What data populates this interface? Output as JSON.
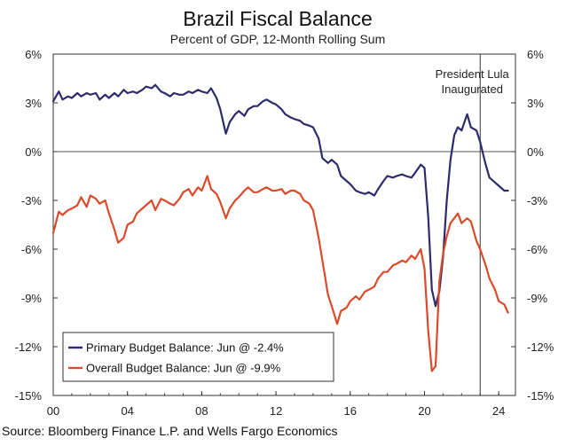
{
  "source": "Source: Bloomberg Finance L.P. and Wells Fargo Economics",
  "chart_data": {
    "type": "line",
    "title": "Brazil Fiscal Balance",
    "subtitle": "Percent of GDP, 12-Month Rolling Sum",
    "xlim": [
      2000,
      2024.9
    ],
    "ylim": [
      -15,
      6
    ],
    "x_ticks": [
      {
        "value": 2000,
        "label": "00"
      },
      {
        "value": 2004,
        "label": "04"
      },
      {
        "value": 2008,
        "label": "08"
      },
      {
        "value": 2012,
        "label": "12"
      },
      {
        "value": 2016,
        "label": "16"
      },
      {
        "value": 2020,
        "label": "20"
      },
      {
        "value": 2024,
        "label": "24"
      }
    ],
    "y_ticks": [
      {
        "value": 6,
        "label": "6%"
      },
      {
        "value": 3,
        "label": "3%"
      },
      {
        "value": 0,
        "label": "0%"
      },
      {
        "value": -3,
        "label": "-3%"
      },
      {
        "value": -6,
        "label": "-6%"
      },
      {
        "value": -9,
        "label": "-9%"
      },
      {
        "value": -12,
        "label": "-12%"
      },
      {
        "value": -15,
        "label": "-15%"
      }
    ],
    "zero_line": true,
    "legend_position": "bottom-left",
    "annotation": {
      "x": 2023.0,
      "text_lines": [
        "President Lula",
        "Inaugurated"
      ]
    },
    "series": [
      {
        "name": "Primary Budget Balance: Jun @ -2.4%",
        "color": "#2e2a6b",
        "x": [
          2000.0,
          2000.3,
          2000.5,
          2000.8,
          2001.0,
          2001.3,
          2001.5,
          2001.8,
          2002.0,
          2002.3,
          2002.5,
          2002.8,
          2003.0,
          2003.3,
          2003.5,
          2003.8,
          2004.0,
          2004.3,
          2004.5,
          2004.8,
          2005.0,
          2005.3,
          2005.5,
          2005.8,
          2006.0,
          2006.3,
          2006.5,
          2006.8,
          2007.0,
          2007.3,
          2007.5,
          2007.8,
          2008.0,
          2008.3,
          2008.5,
          2008.8,
          2009.0,
          2009.3,
          2009.5,
          2009.8,
          2010.0,
          2010.3,
          2010.5,
          2010.8,
          2011.0,
          2011.3,
          2011.5,
          2011.8,
          2012.0,
          2012.3,
          2012.5,
          2012.8,
          2013.0,
          2013.3,
          2013.5,
          2013.8,
          2014.0,
          2014.3,
          2014.5,
          2014.8,
          2015.0,
          2015.3,
          2015.5,
          2015.8,
          2016.0,
          2016.3,
          2016.5,
          2016.8,
          2017.0,
          2017.3,
          2017.5,
          2017.8,
          2018.0,
          2018.3,
          2018.5,
          2018.8,
          2019.0,
          2019.3,
          2019.5,
          2019.8,
          2020.0,
          2020.2,
          2020.4,
          2020.6,
          2020.8,
          2021.0,
          2021.2,
          2021.4,
          2021.6,
          2021.8,
          2022.0,
          2022.3,
          2022.5,
          2022.8,
          2023.0,
          2023.3,
          2023.5,
          2023.8,
          2024.0,
          2024.3,
          2024.5
        ],
        "y": [
          3.1,
          3.7,
          3.2,
          3.4,
          3.3,
          3.6,
          3.4,
          3.6,
          3.5,
          3.6,
          3.2,
          3.5,
          3.3,
          3.6,
          3.4,
          3.8,
          3.6,
          3.7,
          3.6,
          3.8,
          4.0,
          3.9,
          4.1,
          3.7,
          3.6,
          3.4,
          3.6,
          3.5,
          3.5,
          3.7,
          3.6,
          3.8,
          3.7,
          3.6,
          3.9,
          3.3,
          2.6,
          1.1,
          1.8,
          2.3,
          2.5,
          2.2,
          2.6,
          2.8,
          2.8,
          3.1,
          3.2,
          3.0,
          2.9,
          2.6,
          2.3,
          2.1,
          2.0,
          1.9,
          1.7,
          1.6,
          1.5,
          0.8,
          -0.4,
          -0.7,
          -0.5,
          -0.8,
          -1.5,
          -1.8,
          -2.0,
          -2.4,
          -2.5,
          -2.6,
          -2.5,
          -2.7,
          -2.3,
          -1.8,
          -1.5,
          -1.6,
          -1.5,
          -1.4,
          -1.5,
          -1.6,
          -1.3,
          -0.8,
          -1.0,
          -4.0,
          -8.5,
          -9.5,
          -8.6,
          -6.5,
          -3.0,
          -0.5,
          1.0,
          1.5,
          1.3,
          2.3,
          1.5,
          1.3,
          0.6,
          -0.8,
          -1.6,
          -1.9,
          -2.1,
          -2.4,
          -2.4
        ]
      },
      {
        "name": "Overall Budget Balance: Jun @ -9.9%",
        "color": "#d94b2a",
        "x": [
          2000.0,
          2000.3,
          2000.5,
          2000.8,
          2001.0,
          2001.3,
          2001.5,
          2001.8,
          2002.0,
          2002.3,
          2002.5,
          2002.8,
          2003.0,
          2003.3,
          2003.5,
          2003.8,
          2004.0,
          2004.3,
          2004.5,
          2004.8,
          2005.0,
          2005.3,
          2005.5,
          2005.8,
          2006.0,
          2006.3,
          2006.5,
          2006.8,
          2007.0,
          2007.3,
          2007.5,
          2007.8,
          2008.0,
          2008.3,
          2008.5,
          2008.8,
          2009.0,
          2009.3,
          2009.5,
          2009.8,
          2010.0,
          2010.3,
          2010.5,
          2010.8,
          2011.0,
          2011.3,
          2011.5,
          2011.8,
          2012.0,
          2012.3,
          2012.5,
          2012.8,
          2013.0,
          2013.3,
          2013.5,
          2013.8,
          2014.0,
          2014.3,
          2014.5,
          2014.8,
          2015.0,
          2015.3,
          2015.5,
          2015.8,
          2016.0,
          2016.3,
          2016.5,
          2016.8,
          2017.0,
          2017.3,
          2017.5,
          2017.8,
          2018.0,
          2018.3,
          2018.5,
          2018.8,
          2019.0,
          2019.3,
          2019.5,
          2019.8,
          2020.0,
          2020.2,
          2020.4,
          2020.6,
          2020.8,
          2021.0,
          2021.2,
          2021.4,
          2021.6,
          2021.8,
          2022.0,
          2022.3,
          2022.5,
          2022.8,
          2023.0,
          2023.3,
          2023.5,
          2023.8,
          2024.0,
          2024.3,
          2024.5
        ],
        "y": [
          -5.0,
          -3.7,
          -3.9,
          -3.6,
          -3.5,
          -3.3,
          -2.8,
          -3.4,
          -2.7,
          -2.9,
          -3.2,
          -3.0,
          -3.8,
          -4.8,
          -5.6,
          -5.3,
          -4.5,
          -4.3,
          -3.8,
          -3.5,
          -3.3,
          -3.0,
          -3.6,
          -2.9,
          -3.0,
          -3.2,
          -3.3,
          -2.9,
          -2.5,
          -2.3,
          -2.7,
          -2.2,
          -2.4,
          -1.5,
          -2.3,
          -2.6,
          -3.1,
          -4.1,
          -3.5,
          -3.0,
          -2.8,
          -2.4,
          -2.2,
          -2.5,
          -2.5,
          -2.3,
          -2.2,
          -2.4,
          -2.4,
          -2.3,
          -2.6,
          -2.4,
          -2.4,
          -2.6,
          -3.0,
          -3.2,
          -3.6,
          -5.3,
          -6.7,
          -8.8,
          -9.5,
          -10.6,
          -9.8,
          -9.6,
          -9.2,
          -8.9,
          -9.1,
          -8.6,
          -8.5,
          -8.3,
          -7.8,
          -7.4,
          -7.4,
          -7.0,
          -6.9,
          -6.7,
          -6.8,
          -6.4,
          -6.6,
          -6.0,
          -7.2,
          -11.0,
          -13.5,
          -13.2,
          -8.0,
          -6.3,
          -5.2,
          -4.4,
          -4.1,
          -3.8,
          -4.4,
          -4.1,
          -4.3,
          -5.5,
          -6.0,
          -7.0,
          -7.8,
          -8.5,
          -9.2,
          -9.4,
          -9.9
        ]
      }
    ]
  }
}
